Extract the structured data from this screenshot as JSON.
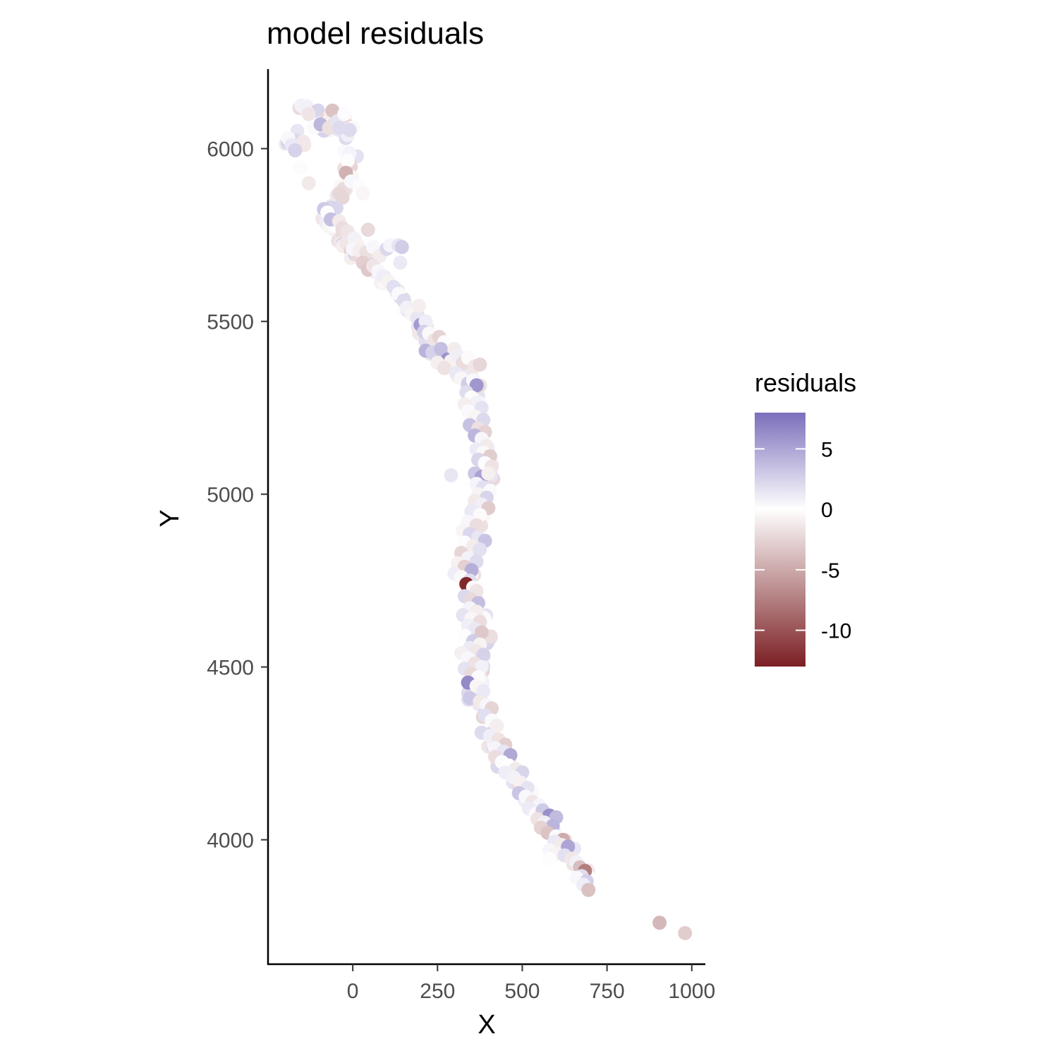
{
  "chart_data": {
    "type": "scatter",
    "title": "model residuals",
    "xlabel": "X",
    "ylabel": "Y",
    "xlim": [
      -250,
      1040
    ],
    "ylim": [
      3640,
      6230
    ],
    "x_ticks": [
      0,
      250,
      500,
      750,
      1000
    ],
    "y_ticks": [
      4000,
      4500,
      5000,
      5500,
      6000
    ],
    "x_tick_labels": [
      "0",
      "250",
      "500",
      "750",
      "1000"
    ],
    "y_tick_labels": [
      "4000",
      "4500",
      "5000",
      "5500",
      "6000"
    ],
    "grid": false,
    "legend": {
      "title": "residuals",
      "placement": "right",
      "range": [
        -13,
        8
      ],
      "ticks": [
        5,
        0,
        -5,
        -10
      ],
      "tick_labels": [
        "5",
        "0",
        "-5",
        "-10"
      ],
      "colors": {
        "high": "#7b6fbb",
        "mid": "#ffffff",
        "low": "#7b1f23"
      }
    },
    "path_x": [
      -190,
      -175,
      -165,
      -150,
      -120,
      -95,
      -75,
      -60,
      -45,
      -35,
      -25,
      -10,
      -5,
      -15,
      -25,
      -35,
      -70,
      -90,
      -60,
      -25,
      -5,
      20,
      55,
      95,
      130,
      150,
      170,
      200,
      230,
      260,
      300,
      340,
      360,
      365,
      368,
      380,
      395,
      395,
      385,
      370,
      360,
      350,
      345,
      350,
      365,
      380,
      390,
      385,
      375,
      360,
      355,
      370,
      390,
      400,
      420,
      450,
      480,
      510,
      540,
      570,
      600,
      630,
      660,
      690
    ],
    "path_y": [
      6030,
      6005,
      5990,
      6120,
      6110,
      6070,
      6060,
      6110,
      6060,
      6080,
      6100,
      5990,
      5960,
      5925,
      5890,
      5850,
      5830,
      5805,
      5770,
      5730,
      5705,
      5690,
      5660,
      5625,
      5590,
      5560,
      5530,
      5480,
      5440,
      5410,
      5380,
      5340,
      5300,
      5250,
      5200,
      5150,
      5100,
      5050,
      5000,
      4950,
      4900,
      4850,
      4800,
      4750,
      4700,
      4650,
      4600,
      4550,
      4500,
      4450,
      4420,
      4400,
      4350,
      4300,
      4260,
      4220,
      4180,
      4140,
      4100,
      4060,
      4020,
      3980,
      3940,
      3880
    ],
    "points": [
      {
        "x": -190,
        "y": 6030,
        "r": 0.4
      },
      {
        "x": -180,
        "y": 6010,
        "r": 1.2
      },
      {
        "x": -170,
        "y": 5995,
        "r": 2.5
      },
      {
        "x": -140,
        "y": 6115,
        "r": 0.8
      },
      {
        "x": -130,
        "y": 6100,
        "r": -1.5
      },
      {
        "x": -115,
        "y": 6060,
        "r": 0.3
      },
      {
        "x": -95,
        "y": 6070,
        "r": 4.0
      },
      {
        "x": -70,
        "y": 6060,
        "r": -1.8
      },
      {
        "x": -60,
        "y": 6110,
        "r": -3.5
      },
      {
        "x": -45,
        "y": 6080,
        "r": 1.5
      },
      {
        "x": -40,
        "y": 6060,
        "r": 2.0
      },
      {
        "x": -25,
        "y": 6100,
        "r": 0.2
      },
      {
        "x": -10,
        "y": 5985,
        "r": 0.6
      },
      {
        "x": -15,
        "y": 5965,
        "r": 0.1
      },
      {
        "x": -20,
        "y": 5930,
        "r": -4.5
      },
      {
        "x": -5,
        "y": 5905,
        "r": 0.4
      },
      {
        "x": 20,
        "y": 5890,
        "r": 0.2
      },
      {
        "x": 30,
        "y": 5870,
        "r": -0.5
      },
      {
        "x": -155,
        "y": 5945,
        "r": 0.2
      },
      {
        "x": -130,
        "y": 5900,
        "r": -1.3
      },
      {
        "x": -85,
        "y": 5825,
        "r": 3.0
      },
      {
        "x": -75,
        "y": 5815,
        "r": 0.1
      },
      {
        "x": -65,
        "y": 5795,
        "r": 3.5
      },
      {
        "x": -40,
        "y": 5790,
        "r": -1.2
      },
      {
        "x": -30,
        "y": 5770,
        "r": -2.0
      },
      {
        "x": -15,
        "y": 5760,
        "r": -1.5
      },
      {
        "x": 5,
        "y": 5740,
        "r": 0.8
      },
      {
        "x": 15,
        "y": 5720,
        "r": -0.8
      },
      {
        "x": 0,
        "y": 5710,
        "r": 0.5
      },
      {
        "x": 20,
        "y": 5705,
        "r": -1.0
      },
      {
        "x": 45,
        "y": 5765,
        "r": -2.2
      },
      {
        "x": 40,
        "y": 5700,
        "r": -1.8
      },
      {
        "x": 60,
        "y": 5715,
        "r": 0.4
      },
      {
        "x": 80,
        "y": 5690,
        "r": -1.1
      },
      {
        "x": 100,
        "y": 5710,
        "r": 2.2
      },
      {
        "x": 110,
        "y": 5720,
        "r": 0.6
      },
      {
        "x": 135,
        "y": 5720,
        "r": 1.5
      },
      {
        "x": 145,
        "y": 5715,
        "r": 2.8
      },
      {
        "x": 30,
        "y": 5670,
        "r": -2.8
      },
      {
        "x": 45,
        "y": 5650,
        "r": -3.2
      },
      {
        "x": 60,
        "y": 5660,
        "r": -1.5
      },
      {
        "x": 75,
        "y": 5645,
        "r": 0.5
      },
      {
        "x": 90,
        "y": 5630,
        "r": 1.0
      },
      {
        "x": 105,
        "y": 5615,
        "r": -0.7
      },
      {
        "x": 120,
        "y": 5600,
        "r": 1.8
      },
      {
        "x": 135,
        "y": 5580,
        "r": 0.3
      },
      {
        "x": 150,
        "y": 5560,
        "r": 2.0
      },
      {
        "x": 140,
        "y": 5670,
        "r": 1.2
      },
      {
        "x": 160,
        "y": 5540,
        "r": 0.8
      },
      {
        "x": 175,
        "y": 5520,
        "r": -0.6
      },
      {
        "x": 190,
        "y": 5510,
        "r": 1.4
      },
      {
        "x": 200,
        "y": 5490,
        "r": 5.5
      },
      {
        "x": 215,
        "y": 5500,
        "r": 1.0
      },
      {
        "x": 195,
        "y": 5545,
        "r": -1.0
      },
      {
        "x": 210,
        "y": 5470,
        "r": 2.6
      },
      {
        "x": 225,
        "y": 5465,
        "r": -0.4
      },
      {
        "x": 240,
        "y": 5445,
        "r": -1.6
      },
      {
        "x": 255,
        "y": 5455,
        "r": -2.5
      },
      {
        "x": 270,
        "y": 5440,
        "r": 0.2
      },
      {
        "x": 215,
        "y": 5415,
        "r": 4.2
      },
      {
        "x": 235,
        "y": 5410,
        "r": 2.5
      },
      {
        "x": 260,
        "y": 5420,
        "r": 3.6
      },
      {
        "x": 280,
        "y": 5390,
        "r": 6.0
      },
      {
        "x": 290,
        "y": 5385,
        "r": -0.8
      },
      {
        "x": 300,
        "y": 5420,
        "r": -1.1
      },
      {
        "x": 310,
        "y": 5400,
        "r": 0.9
      },
      {
        "x": 325,
        "y": 5380,
        "r": -2.0
      },
      {
        "x": 340,
        "y": 5395,
        "r": -0.3
      },
      {
        "x": 360,
        "y": 5370,
        "r": -1.4
      },
      {
        "x": 375,
        "y": 5375,
        "r": -2.3
      },
      {
        "x": 250,
        "y": 5380,
        "r": -0.9
      },
      {
        "x": 270,
        "y": 5365,
        "r": -1.7
      },
      {
        "x": 305,
        "y": 5350,
        "r": 1.3
      },
      {
        "x": 320,
        "y": 5335,
        "r": -0.5
      },
      {
        "x": 340,
        "y": 5320,
        "r": 2.8
      },
      {
        "x": 355,
        "y": 5330,
        "r": 0.4
      },
      {
        "x": 365,
        "y": 5315,
        "r": 5.8
      },
      {
        "x": 335,
        "y": 5295,
        "r": 1.9
      },
      {
        "x": 350,
        "y": 5280,
        "r": -0.2
      },
      {
        "x": 365,
        "y": 5265,
        "r": 0.7
      },
      {
        "x": 330,
        "y": 5260,
        "r": -1.0
      },
      {
        "x": 380,
        "y": 5250,
        "r": 1.6
      },
      {
        "x": 340,
        "y": 5240,
        "r": 0.3
      },
      {
        "x": 360,
        "y": 5225,
        "r": -0.6
      },
      {
        "x": 385,
        "y": 5215,
        "r": 2.1
      },
      {
        "x": 345,
        "y": 5200,
        "r": 3.4
      },
      {
        "x": 370,
        "y": 5190,
        "r": -1.8
      },
      {
        "x": 390,
        "y": 5180,
        "r": -2.6
      },
      {
        "x": 360,
        "y": 5170,
        "r": 4.0
      },
      {
        "x": 380,
        "y": 5160,
        "r": 0.5
      },
      {
        "x": 395,
        "y": 5140,
        "r": -1.2
      },
      {
        "x": 365,
        "y": 5130,
        "r": 1.1
      },
      {
        "x": 385,
        "y": 5120,
        "r": -0.4
      },
      {
        "x": 405,
        "y": 5110,
        "r": -2.9
      },
      {
        "x": 370,
        "y": 5100,
        "r": 2.3
      },
      {
        "x": 390,
        "y": 5090,
        "r": 0.2
      },
      {
        "x": 410,
        "y": 5080,
        "r": -1.6
      },
      {
        "x": 290,
        "y": 5055,
        "r": 1.4
      },
      {
        "x": 360,
        "y": 5060,
        "r": 3.1
      },
      {
        "x": 380,
        "y": 5050,
        "r": 5.2
      },
      {
        "x": 400,
        "y": 5060,
        "r": -0.9
      },
      {
        "x": 365,
        "y": 5030,
        "r": 0.6
      },
      {
        "x": 385,
        "y": 5020,
        "r": 1.8
      },
      {
        "x": 405,
        "y": 5010,
        "r": 0.3
      },
      {
        "x": 370,
        "y": 5000,
        "r": -0.7
      },
      {
        "x": 395,
        "y": 4990,
        "r": 2.4
      },
      {
        "x": 360,
        "y": 4980,
        "r": -1.3
      },
      {
        "x": 380,
        "y": 4970,
        "r": 0.9
      },
      {
        "x": 400,
        "y": 4960,
        "r": -3.0
      },
      {
        "x": 350,
        "y": 4950,
        "r": 1.2
      },
      {
        "x": 375,
        "y": 4940,
        "r": -0.3
      },
      {
        "x": 340,
        "y": 4920,
        "r": 0.5
      },
      {
        "x": 365,
        "y": 4910,
        "r": -1.9
      },
      {
        "x": 325,
        "y": 4895,
        "r": -0.6
      },
      {
        "x": 345,
        "y": 4885,
        "r": 2.2
      },
      {
        "x": 370,
        "y": 4875,
        "r": 1.4
      },
      {
        "x": 390,
        "y": 4865,
        "r": 3.3
      },
      {
        "x": 330,
        "y": 4860,
        "r": 0.2
      },
      {
        "x": 355,
        "y": 4850,
        "r": -1.1
      },
      {
        "x": 375,
        "y": 4840,
        "r": 1.7
      },
      {
        "x": 320,
        "y": 4830,
        "r": -2.4
      },
      {
        "x": 340,
        "y": 4815,
        "r": 0.7
      },
      {
        "x": 365,
        "y": 4805,
        "r": 2.0
      },
      {
        "x": 310,
        "y": 4800,
        "r": -0.8
      },
      {
        "x": 330,
        "y": 4790,
        "r": -2.7
      },
      {
        "x": 350,
        "y": 4780,
        "r": 4.5
      },
      {
        "x": 300,
        "y": 4770,
        "r": 1.0
      },
      {
        "x": 320,
        "y": 4760,
        "r": -0.4
      },
      {
        "x": 345,
        "y": 4750,
        "r": 1.9
      },
      {
        "x": 335,
        "y": 4740,
        "r": -12.5
      },
      {
        "x": 355,
        "y": 4730,
        "r": 0.3
      },
      {
        "x": 365,
        "y": 4720,
        "r": -1.5
      },
      {
        "x": 330,
        "y": 4705,
        "r": 2.1
      },
      {
        "x": 350,
        "y": 4695,
        "r": -2.2
      },
      {
        "x": 370,
        "y": 4685,
        "r": 3.6
      },
      {
        "x": 345,
        "y": 4670,
        "r": 0.6
      },
      {
        "x": 365,
        "y": 4660,
        "r": -1.0
      },
      {
        "x": 325,
        "y": 4650,
        "r": 1.5
      },
      {
        "x": 350,
        "y": 4640,
        "r": -0.5
      },
      {
        "x": 375,
        "y": 4630,
        "r": -2.0
      },
      {
        "x": 340,
        "y": 4620,
        "r": 0.9
      },
      {
        "x": 360,
        "y": 4610,
        "r": 1.3
      },
      {
        "x": 380,
        "y": 4600,
        "r": -3.2
      },
      {
        "x": 330,
        "y": 4590,
        "r": 0.1
      },
      {
        "x": 355,
        "y": 4575,
        "r": 2.7
      },
      {
        "x": 375,
        "y": 4565,
        "r": -0.7
      },
      {
        "x": 345,
        "y": 4555,
        "r": 1.1
      },
      {
        "x": 365,
        "y": 4545,
        "r": -1.4
      },
      {
        "x": 385,
        "y": 4535,
        "r": 2.5
      },
      {
        "x": 320,
        "y": 4540,
        "r": -0.9
      },
      {
        "x": 340,
        "y": 4525,
        "r": 0.4
      },
      {
        "x": 360,
        "y": 4510,
        "r": -1.7
      },
      {
        "x": 380,
        "y": 4500,
        "r": 0.8
      },
      {
        "x": 330,
        "y": 4495,
        "r": 1.6
      },
      {
        "x": 350,
        "y": 4480,
        "r": -2.1
      },
      {
        "x": 370,
        "y": 4470,
        "r": 0.2
      },
      {
        "x": 340,
        "y": 4455,
        "r": 6.5
      },
      {
        "x": 365,
        "y": 4445,
        "r": -0.6
      },
      {
        "x": 385,
        "y": 4430,
        "r": 1.2
      },
      {
        "x": 345,
        "y": 4410,
        "r": 3.0
      },
      {
        "x": 375,
        "y": 4400,
        "r": -1.3
      },
      {
        "x": 395,
        "y": 4390,
        "r": 0.5
      },
      {
        "x": 410,
        "y": 4380,
        "r": -2.5
      },
      {
        "x": 390,
        "y": 4360,
        "r": 1.8
      },
      {
        "x": 410,
        "y": 4345,
        "r": 0.3
      },
      {
        "x": 425,
        "y": 4330,
        "r": -1.0
      },
      {
        "x": 380,
        "y": 4310,
        "r": 2.0
      },
      {
        "x": 405,
        "y": 4300,
        "r": 0.9
      },
      {
        "x": 430,
        "y": 4290,
        "r": -1.6
      },
      {
        "x": 450,
        "y": 4275,
        "r": -2.8
      },
      {
        "x": 420,
        "y": 4265,
        "r": 0.6
      },
      {
        "x": 445,
        "y": 4255,
        "r": 1.4
      },
      {
        "x": 465,
        "y": 4245,
        "r": 4.8
      },
      {
        "x": 420,
        "y": 4240,
        "r": -1.9
      },
      {
        "x": 440,
        "y": 4225,
        "r": 0.2
      },
      {
        "x": 460,
        "y": 4215,
        "r": 0.0
      },
      {
        "x": 480,
        "y": 4205,
        "r": -1.2
      },
      {
        "x": 500,
        "y": 4195,
        "r": 2.3
      },
      {
        "x": 450,
        "y": 4195,
        "r": 1.0
      },
      {
        "x": 475,
        "y": 4180,
        "r": 0.7
      },
      {
        "x": 495,
        "y": 4165,
        "r": -0.8
      },
      {
        "x": 515,
        "y": 4150,
        "r": 1.5
      },
      {
        "x": 490,
        "y": 4135,
        "r": 3.2
      },
      {
        "x": 510,
        "y": 4125,
        "r": 0.4
      },
      {
        "x": 530,
        "y": 4110,
        "r": -1.5
      },
      {
        "x": 550,
        "y": 4100,
        "r": 0.6
      },
      {
        "x": 520,
        "y": 4090,
        "r": 1.1
      },
      {
        "x": 540,
        "y": 4075,
        "r": -0.3
      },
      {
        "x": 560,
        "y": 4085,
        "r": 2.9
      },
      {
        "x": 580,
        "y": 4070,
        "r": 6.2
      },
      {
        "x": 600,
        "y": 4065,
        "r": 3.8
      },
      {
        "x": 545,
        "y": 4060,
        "r": -1.7
      },
      {
        "x": 565,
        "y": 4050,
        "r": 0.9
      },
      {
        "x": 590,
        "y": 4040,
        "r": 4.1
      },
      {
        "x": 555,
        "y": 4035,
        "r": -2.6
      },
      {
        "x": 575,
        "y": 4020,
        "r": -3.4
      },
      {
        "x": 600,
        "y": 4010,
        "r": 0.3
      },
      {
        "x": 620,
        "y": 4000,
        "r": -4.8
      },
      {
        "x": 595,
        "y": 3995,
        "r": 1.2
      },
      {
        "x": 615,
        "y": 3985,
        "r": -1.1
      },
      {
        "x": 635,
        "y": 3980,
        "r": 5.0
      },
      {
        "x": 580,
        "y": 3970,
        "r": 0.5
      },
      {
        "x": 600,
        "y": 3960,
        "r": -0.7
      },
      {
        "x": 625,
        "y": 3955,
        "r": 1.7
      },
      {
        "x": 645,
        "y": 3945,
        "r": -1.4
      },
      {
        "x": 660,
        "y": 3935,
        "r": 0.8
      },
      {
        "x": 580,
        "y": 3945,
        "r": 0.1
      },
      {
        "x": 670,
        "y": 3920,
        "r": -3.8
      },
      {
        "x": 685,
        "y": 3910,
        "r": -7.5
      },
      {
        "x": 675,
        "y": 3895,
        "r": 1.9
      },
      {
        "x": 660,
        "y": 3890,
        "r": 0.4
      },
      {
        "x": 690,
        "y": 3880,
        "r": 2.6
      },
      {
        "x": 680,
        "y": 3870,
        "r": 1.0
      },
      {
        "x": 695,
        "y": 3855,
        "r": -3.6
      },
      {
        "x": 905,
        "y": 3760,
        "r": -4.2
      },
      {
        "x": 980,
        "y": 3730,
        "r": -2.9
      }
    ]
  }
}
